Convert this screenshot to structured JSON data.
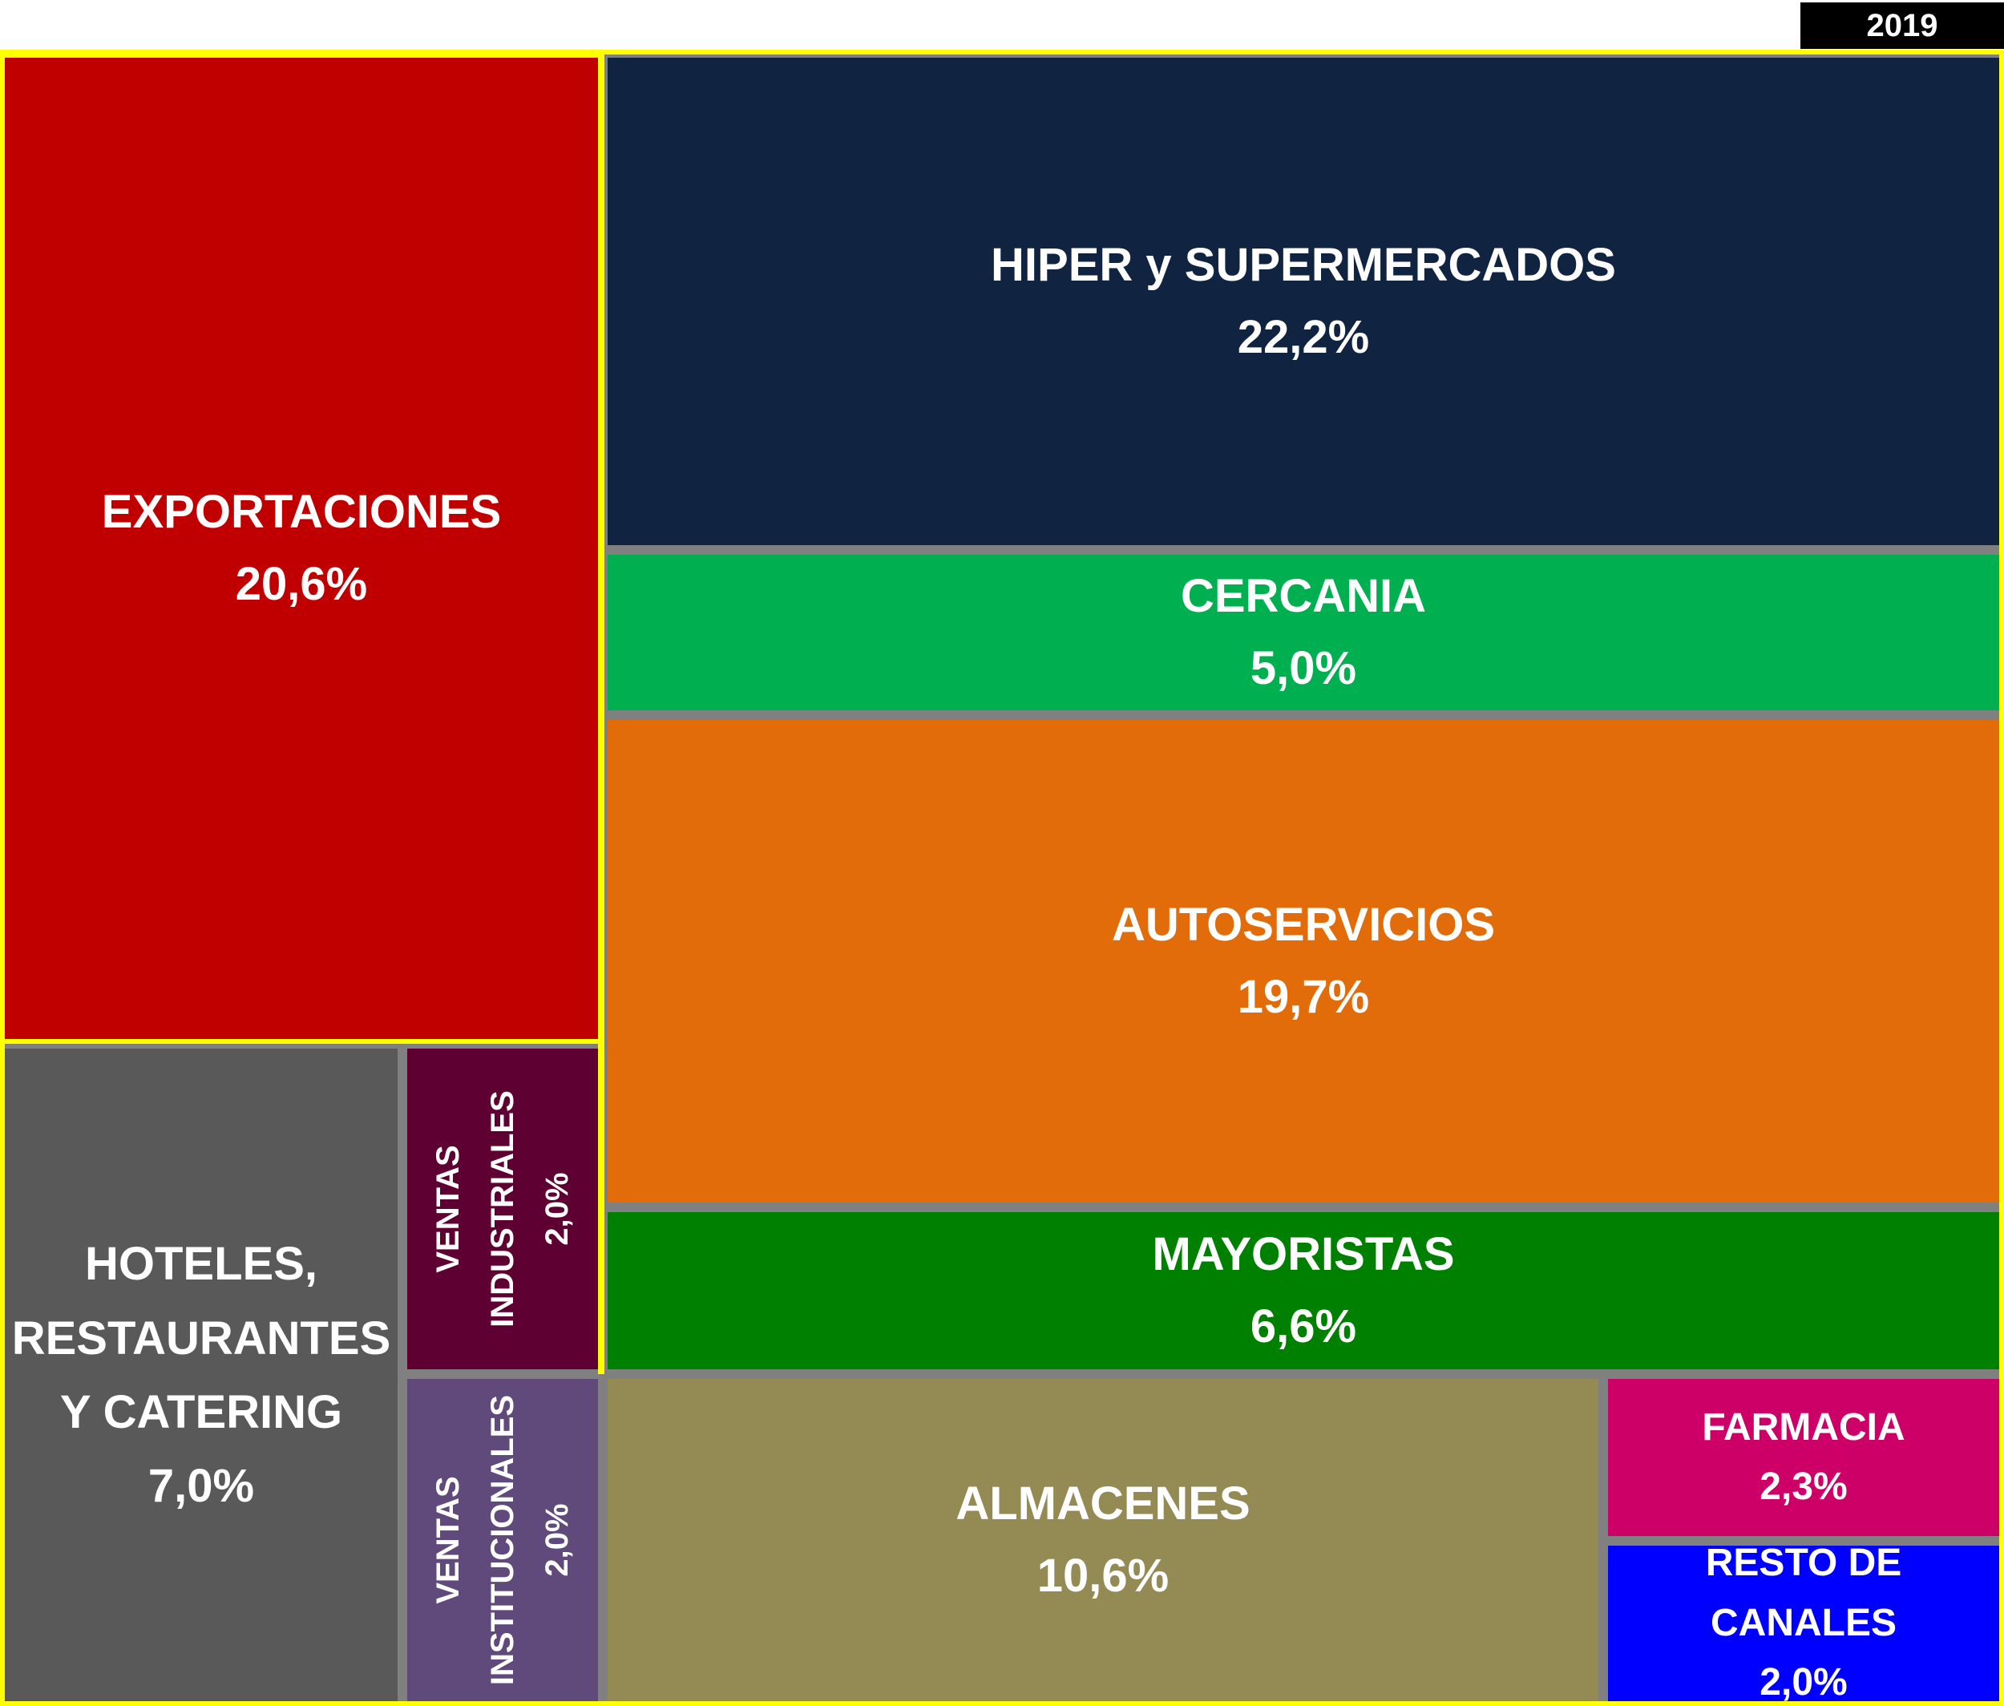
{
  "year": "2019",
  "chart_data": {
    "type": "treemap",
    "unit": "%",
    "colors": {
      "frame": "#FFFF00",
      "separator": "#808080"
    },
    "cells": [
      {
        "id": "exportaciones",
        "label": "EXPORTACIONES",
        "value_text": "20,6%",
        "value": 20.6,
        "color": "#C00000"
      },
      {
        "id": "hiper",
        "label": "HIPER y SUPERMERCADOS",
        "value_text": "22,2%",
        "value": 22.2,
        "color": "#102341"
      },
      {
        "id": "cercania",
        "label": "CERCANIA",
        "value_text": "5,0%",
        "value": 5.0,
        "color": "#00B050"
      },
      {
        "id": "autoservicios",
        "label": "AUTOSERVICIOS",
        "value_text": "19,7%",
        "value": 19.7,
        "color": "#E26B0A"
      },
      {
        "id": "mayoristas",
        "label": "MAYORISTAS",
        "value_text": "6,6%",
        "value": 6.6,
        "color": "#008000"
      },
      {
        "id": "hoteles",
        "label": "HOTELES, RESTAURANTES Y CATERING",
        "value_text": "7,0%",
        "value": 7.0,
        "color": "#595959"
      },
      {
        "id": "ventas-industriales",
        "label": "VENTAS INDUSTRIALES",
        "value_text": "2,0%",
        "value": 2.0,
        "color": "#5F0032"
      },
      {
        "id": "ventas-institucionales",
        "label": "VENTAS INSTITUCIONALES",
        "value_text": "2,0%",
        "value": 2.0,
        "color": "#604A7B"
      },
      {
        "id": "almacenes",
        "label": "ALMACENES",
        "value_text": "10,6%",
        "value": 10.6,
        "color": "#948A54"
      },
      {
        "id": "farmacia",
        "label": "FARMACIA",
        "value_text": "2,3%",
        "value": 2.3,
        "color": "#CC0066"
      },
      {
        "id": "resto",
        "label": "RESTO DE CANALES",
        "value_text": "2,0%",
        "value": 2.0,
        "color": "#0000FF"
      }
    ]
  }
}
